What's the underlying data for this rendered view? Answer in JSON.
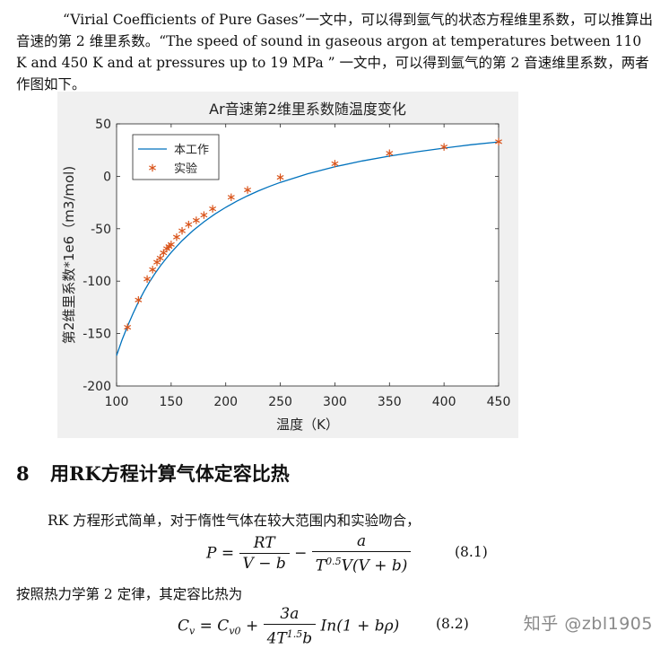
{
  "intro": "“Virial Coefficients of Pure Gases”一文中，可以得到氩气的状态方程维里系数，可以推算出音速的第 2 维里系数。“The speed of sound in gaseous argon at temperatures between 110 K and 450 K and at pressures up to 19 MPa ” 一文中，可以得到氩气的第 2 音速维里系数，两者作图如下。",
  "chart_data": {
    "type": "line",
    "title": "Ar音速第2维里系数随温度变化",
    "xlabel": "温度（K）",
    "ylabel": "第2维里系数*1e6（m3/mol)",
    "xlim": [
      100,
      450
    ],
    "ylim": [
      -200,
      50
    ],
    "xticks": [
      100,
      150,
      200,
      250,
      300,
      350,
      400,
      450
    ],
    "yticks": [
      50,
      0,
      -50,
      -100,
      -150,
      -200
    ],
    "xtick_labels": [
      "100",
      "150",
      "200",
      "250",
      "300",
      "350",
      "400",
      "450"
    ],
    "ytick_labels": [
      "50",
      "0",
      "-50",
      "-100",
      "-150",
      "-200"
    ],
    "legend_position": "top-left",
    "grid": false,
    "series": [
      {
        "name": "本工作",
        "style": "line",
        "color": "#0072bd",
        "x": [
          100,
          105,
          110,
          115,
          120,
          125,
          130,
          135,
          140,
          145,
          150,
          160,
          170,
          180,
          190,
          200,
          210,
          220,
          230,
          240,
          250,
          275,
          300,
          325,
          350,
          375,
          400,
          425,
          450
        ],
        "y": [
          -171,
          -156,
          -143,
          -131,
          -120,
          -110,
          -101,
          -93,
          -85.6,
          -78.9,
          -72.6,
          -61.4,
          -51.8,
          -43.4,
          -36.1,
          -29.6,
          -23.8,
          -18.6,
          -13.9,
          -9.7,
          -5.8,
          2.4,
          9.1,
          14.6,
          19.3,
          23.4,
          26.9,
          30.1,
          32.8
        ]
      },
      {
        "name": "实验",
        "style": "marker",
        "color": "#d95319",
        "x": [
          110,
          120,
          128,
          133,
          137,
          140,
          143,
          146,
          148,
          150,
          155,
          160,
          166,
          173,
          180,
          188,
          205,
          220,
          250,
          300,
          350,
          400,
          450
        ],
        "y": [
          -144,
          -118,
          -98,
          -89,
          -82,
          -78,
          -73,
          -69,
          -67,
          -65,
          -58,
          -52,
          -46,
          -42,
          -37,
          -31,
          -20,
          -13,
          -1,
          12,
          22,
          28,
          33
        ]
      }
    ]
  },
  "section": {
    "number": "8",
    "title": "用RK方程计算气体定容比热"
  },
  "para2": "RK 方程形式简单，对于惰性气体在较大范围内和实验吻合，",
  "eq1": {
    "lhs": "P",
    "eq": "=",
    "f1_num": "RT",
    "f1_den": "V − b",
    "minus": "−",
    "f2_num": "a",
    "f2_den_pre": "T",
    "f2_den_sup": "0.5",
    "f2_den_post": "V(V + b)",
    "number": "(8.1)"
  },
  "para3": "按照热力学第 2 定律，其定容比热为",
  "eq2": {
    "lhs": "C",
    "lhs_sub": "v",
    "eq": "=",
    "c0": "C",
    "c0_sub": "v0",
    "plus": "+",
    "f_num": "3a",
    "f_den_pre": "4T",
    "f_den_sup": "1.5",
    "f_den_post": "b",
    "tail": "In(1 + bρ)",
    "number": "(8.2)"
  },
  "watermark": "知乎 @zbl1905"
}
